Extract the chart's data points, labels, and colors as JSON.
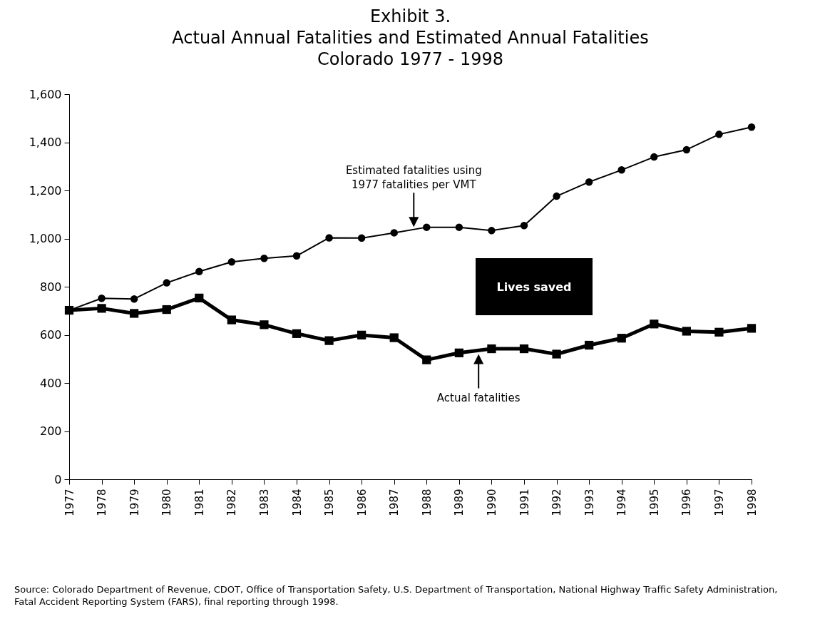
{
  "chart_data": {
    "type": "line",
    "title": "Exhibit 3.\nActual Annual Fatalities and Estimated Annual Fatalities\nColorado 1977 - 1998",
    "x": [
      1977,
      1978,
      1979,
      1980,
      1981,
      1982,
      1983,
      1984,
      1985,
      1986,
      1987,
      1988,
      1989,
      1990,
      1991,
      1992,
      1993,
      1994,
      1995,
      1996,
      1997,
      1998
    ],
    "series": [
      {
        "color": "#000000",
        "marker": "square",
        "values": [
          702,
          710,
          689,
          705,
          753,
          662,
          642,
          605,
          576,
          599,
          588,
          496,
          525,
          542,
          542,
          520,
          557,
          586,
          645,
          615,
          611,
          627
        ]
      },
      {
        "color": "#000000",
        "marker": "circle",
        "values": [
          702,
          752,
          749,
          816,
          863,
          903,
          918,
          928,
          1003,
          1002,
          1024,
          1047,
          1047,
          1033,
          1054,
          1176,
          1235,
          1285,
          1339,
          1369,
          1433,
          1463
        ]
      }
    ],
    "xlim": [
      1977,
      1998
    ],
    "xticks": [
      1977,
      1978,
      1979,
      1980,
      1981,
      1982,
      1983,
      1984,
      1985,
      1986,
      1987,
      1988,
      1989,
      1990,
      1991,
      1992,
      1993,
      1994,
      1995,
      1996,
      1997,
      1998
    ],
    "ylim": [
      0,
      1600
    ],
    "yticks": [
      0,
      200,
      400,
      600,
      800,
      {
        "value": 1000,
        "label": "1,000"
      },
      {
        "value": 1200,
        "label": "1,200"
      },
      {
        "value": 1400,
        "label": "1,400"
      },
      {
        "value": 1600,
        "label": "1,600"
      }
    ],
    "grid": false,
    "legend": false,
    "annotations": [
      "Estimated fatalities using\n1977 fatalities per VMT",
      "Actual fatalities",
      "Lives saved",
      "Source:   Colorado Department of Revenue, CDOT, Office of Transportation Safety, U.S. Department of Transportation, National Highway Traffic Safety Administration, Fatal Accident Reporting System (FARS), final reporting through 1998."
    ]
  }
}
